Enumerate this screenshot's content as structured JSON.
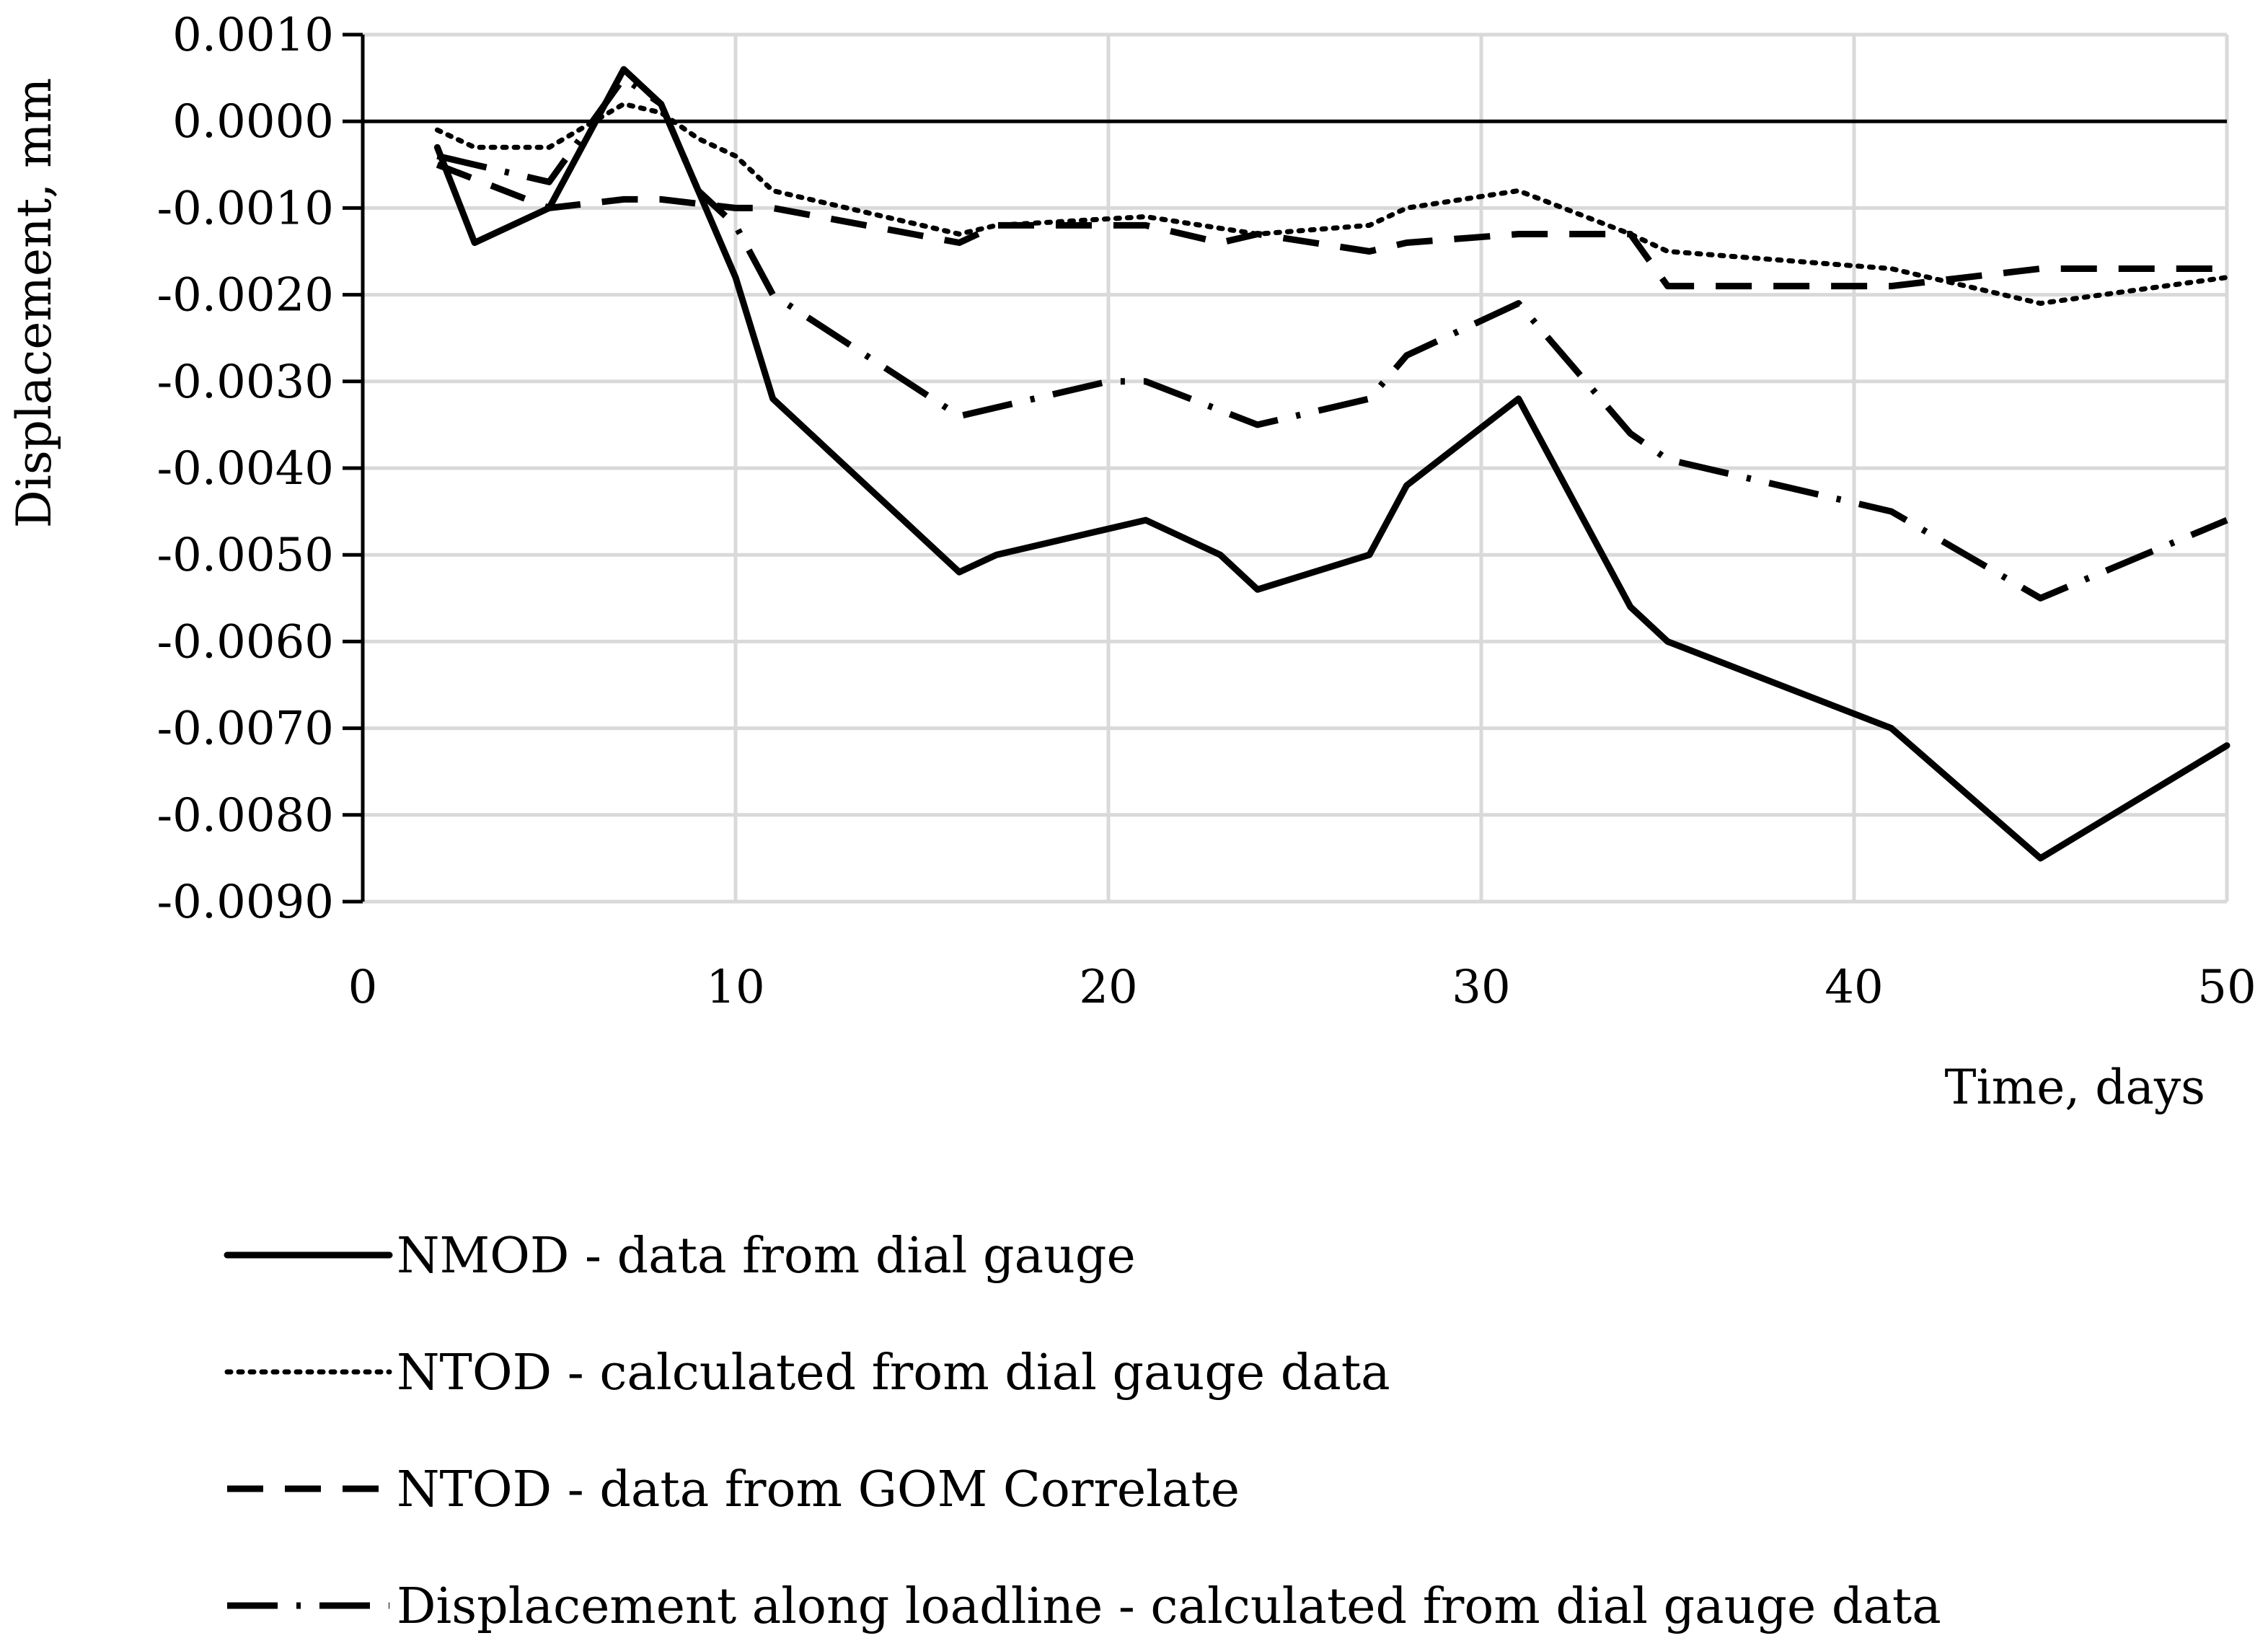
{
  "chart_data": {
    "type": "line",
    "title": "",
    "xlabel": "Time, days",
    "ylabel": "Displacement, mm",
    "xlim": [
      0,
      50
    ],
    "ylim": [
      -0.009,
      0.001
    ],
    "x_ticks": [
      0,
      10,
      20,
      30,
      40,
      50
    ],
    "x_tick_labels": [
      "0",
      "10",
      "20",
      "30",
      "40",
      "50"
    ],
    "y_ticks": [
      0.001,
      0.0,
      -0.001,
      -0.002,
      -0.003,
      -0.004,
      -0.005,
      -0.006,
      -0.007,
      -0.008,
      -0.009
    ],
    "y_tick_labels": [
      "0.0010",
      "0.0000",
      "-0.0010",
      "-0.0020",
      "-0.0030",
      "-0.0040",
      "-0.0050",
      "-0.0060",
      "-0.0070",
      "-0.0080",
      "-0.0090"
    ],
    "grid": true,
    "legend_position": "bottom",
    "series": [
      {
        "name": "NMOD - data from dial gauge",
        "style": "solid",
        "color": "#000000",
        "x": [
          2,
          3,
          5,
          7,
          8,
          10,
          11,
          16,
          17,
          21,
          23,
          24,
          27,
          28,
          31,
          34,
          35,
          41,
          45,
          50
        ],
        "y": [
          -0.0003,
          -0.0014,
          -0.001,
          0.0006,
          0.0002,
          -0.0018,
          -0.0032,
          -0.0052,
          -0.005,
          -0.0046,
          -0.005,
          -0.0054,
          -0.005,
          -0.0042,
          -0.0032,
          -0.0056,
          -0.006,
          -0.007,
          -0.0085,
          -0.0072
        ]
      },
      {
        "name": "NTOD - calculated from dial gauge data",
        "style": "dotted",
        "color": "#000000",
        "x": [
          2,
          3,
          5,
          7,
          8,
          9,
          10,
          11,
          16,
          17,
          21,
          24,
          27,
          28,
          31,
          34,
          35,
          41,
          45,
          50
        ],
        "y": [
          -0.0001,
          -0.0003,
          -0.0003,
          0.0002,
          0.0001,
          -0.0002,
          -0.0004,
          -0.0008,
          -0.0013,
          -0.0012,
          -0.0011,
          -0.0013,
          -0.0012,
          -0.001,
          -0.0008,
          -0.0013,
          -0.0015,
          -0.0017,
          -0.0021,
          -0.0018
        ]
      },
      {
        "name": "NTOD - data from GOM Correlate",
        "style": "dashed",
        "color": "#000000",
        "x": [
          2,
          5,
          7,
          8,
          10,
          11,
          16,
          17,
          21,
          23,
          24,
          27,
          28,
          31,
          34,
          35,
          41,
          45,
          50
        ],
        "y": [
          -0.0005,
          -0.001,
          -0.0009,
          -0.0009,
          -0.001,
          -0.001,
          -0.0014,
          -0.0012,
          -0.0012,
          -0.0014,
          -0.0013,
          -0.0015,
          -0.0014,
          -0.0013,
          -0.0013,
          -0.0019,
          -0.0019,
          -0.0017,
          -0.0017
        ]
      },
      {
        "name": "Displacement along loadline - calculated from dial gauge data",
        "style": "dash-dot",
        "color": "#000000",
        "x": [
          2,
          5,
          7,
          8,
          9,
          10,
          11,
          16,
          17,
          20,
          21,
          24,
          27,
          28,
          31,
          34,
          35,
          41,
          45,
          50
        ],
        "y": [
          -0.0004,
          -0.0007,
          0.0005,
          0.0002,
          -0.0008,
          -0.0012,
          -0.002,
          -0.0034,
          -0.0033,
          -0.003,
          -0.003,
          -0.0035,
          -0.0032,
          -0.0027,
          -0.0021,
          -0.0036,
          -0.0039,
          -0.0045,
          -0.0055,
          -0.0046
        ]
      }
    ]
  }
}
